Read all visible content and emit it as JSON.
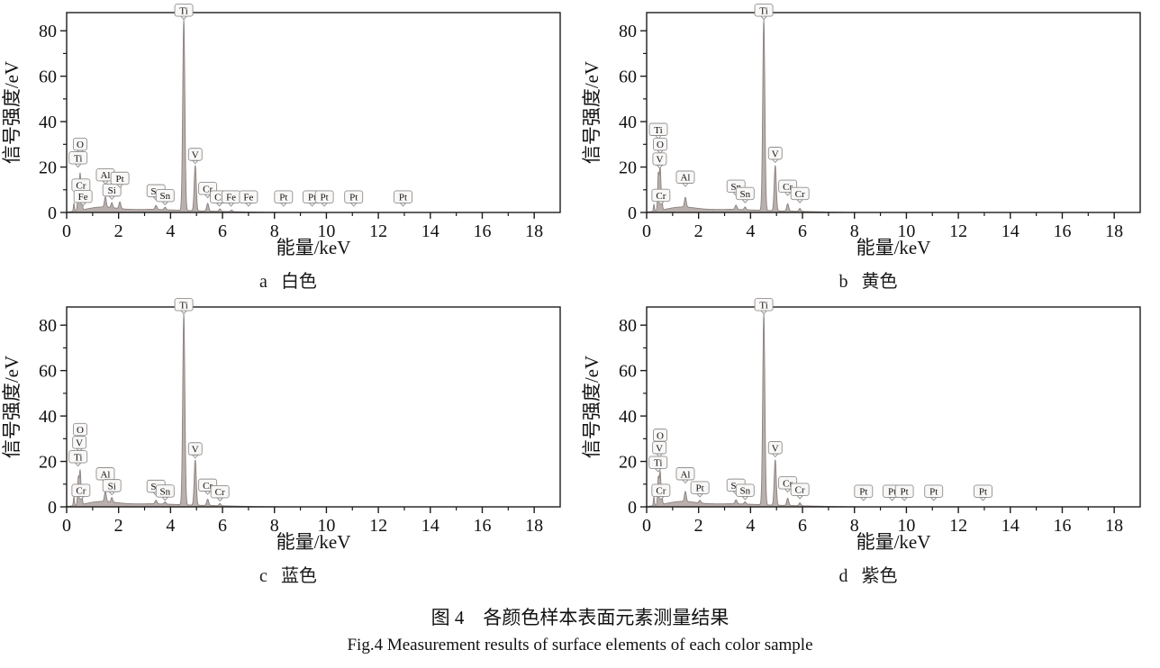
{
  "figure": {
    "caption_zh": "图 4　各颜色样本表面元素测量结果",
    "caption_en": "Fig.4 Measurement results of surface elements of each color sample"
  },
  "style": {
    "axis_color": "#1c1c1c",
    "spectrum_fill": "#b9b0ad",
    "spectrum_stroke": "#8a817e",
    "label_box_fill": "#faf8f7",
    "label_box_border": "#8f8f8f",
    "text_color": "#111111"
  },
  "chart_data": [
    {
      "type": "area",
      "panel_letter": "a",
      "panel_title": "白色",
      "xlabel": "能量/keV",
      "ylabel": "信号强度/eV",
      "xlim": [
        0,
        19
      ],
      "ylim": [
        0,
        88
      ],
      "xticks": [
        0,
        2,
        4,
        6,
        8,
        10,
        12,
        14,
        16,
        18
      ],
      "xticks_minor": [
        1,
        3,
        5,
        7,
        9,
        11,
        13,
        15,
        17
      ],
      "yticks": [
        0,
        20,
        40,
        60,
        80
      ],
      "yticks_minor": [
        10,
        30,
        50,
        70
      ],
      "peaks": [
        {
          "x": 0.28,
          "h": 3.5,
          "w": 0.028
        },
        {
          "x": 0.45,
          "h": 13,
          "w": 0.038
        },
        {
          "x": 0.52,
          "h": 16,
          "w": 0.04
        },
        {
          "x": 0.585,
          "h": 6,
          "w": 0.032
        },
        {
          "x": 1.49,
          "h": 4.5,
          "w": 0.05
        },
        {
          "x": 1.74,
          "h": 2.2,
          "w": 0.045
        },
        {
          "x": 2.05,
          "h": 3.0,
          "w": 0.05
        },
        {
          "x": 3.44,
          "h": 1.8,
          "w": 0.055
        },
        {
          "x": 3.79,
          "h": 1.1,
          "w": 0.05
        },
        {
          "x": 4.51,
          "h": 84,
          "w": 0.058
        },
        {
          "x": 4.95,
          "h": 20,
          "w": 0.055
        },
        {
          "x": 5.43,
          "h": 3.4,
          "w": 0.055
        },
        {
          "x": 5.9,
          "h": 1.1,
          "w": 0.05
        },
        {
          "x": 6.35,
          "h": 0.7,
          "w": 0.05
        },
        {
          "x": 1.3,
          "h": 2.1,
          "w": 0.85
        },
        {
          "x": 3.1,
          "h": 1.2,
          "w": 1.5
        },
        {
          "x": 5.3,
          "h": 0.5,
          "w": 1.8
        }
      ],
      "annotations": [
        {
          "label": "O",
          "x": 0.52,
          "y": 26
        },
        {
          "label": "Ti",
          "x": 0.44,
          "y": 20
        },
        {
          "label": "Cr",
          "x": 0.55,
          "y": 8
        },
        {
          "label": "Fe",
          "x": 0.63,
          "y": 3
        },
        {
          "label": "Al",
          "x": 1.49,
          "y": 12.5
        },
        {
          "label": "Si",
          "x": 1.74,
          "y": 5.8
        },
        {
          "label": "Pt",
          "x": 2.05,
          "y": 11
        },
        {
          "label": "Sn",
          "x": 3.44,
          "y": 5.5
        },
        {
          "label": "Sn",
          "x": 3.79,
          "y": 3.4
        },
        {
          "label": "Ti",
          "x": 4.51,
          "y": 85
        },
        {
          "label": "V",
          "x": 4.95,
          "y": 21.5
        },
        {
          "label": "Cr",
          "x": 5.43,
          "y": 6.5
        },
        {
          "label": "Cr",
          "x": 5.88,
          "y": 2.8
        },
        {
          "label": "Fe",
          "x": 6.33,
          "y": 2.8
        },
        {
          "label": "Fe",
          "x": 7.0,
          "y": 2.8
        },
        {
          "label": "Pt",
          "x": 8.35,
          "y": 2.8
        },
        {
          "label": "Pt",
          "x": 9.45,
          "y": 2.8
        },
        {
          "label": "Pt",
          "x": 9.92,
          "y": 2.8
        },
        {
          "label": "Pt",
          "x": 11.05,
          "y": 2.8
        },
        {
          "label": "Pt",
          "x": 12.95,
          "y": 2.8
        }
      ]
    },
    {
      "type": "area",
      "panel_letter": "b",
      "panel_title": "黄色",
      "xlabel": "能量/keV",
      "ylabel": "信号强度/eV",
      "xlim": [
        0,
        19
      ],
      "ylim": [
        0,
        88
      ],
      "xticks": [
        0,
        2,
        4,
        6,
        8,
        10,
        12,
        14,
        16,
        18
      ],
      "xticks_minor": [
        1,
        3,
        5,
        7,
        9,
        11,
        13,
        15,
        17
      ],
      "yticks": [
        0,
        20,
        40,
        60,
        80
      ],
      "yticks_minor": [
        10,
        30,
        50,
        70
      ],
      "peaks": [
        {
          "x": 0.28,
          "h": 3,
          "w": 0.028
        },
        {
          "x": 0.45,
          "h": 16,
          "w": 0.038
        },
        {
          "x": 0.52,
          "h": 19,
          "w": 0.04
        },
        {
          "x": 0.585,
          "h": 5,
          "w": 0.032
        },
        {
          "x": 1.49,
          "h": 4.3,
          "w": 0.05
        },
        {
          "x": 3.44,
          "h": 1.9,
          "w": 0.055
        },
        {
          "x": 3.79,
          "h": 1.2,
          "w": 0.05
        },
        {
          "x": 4.51,
          "h": 84,
          "w": 0.058
        },
        {
          "x": 4.95,
          "h": 20,
          "w": 0.055
        },
        {
          "x": 5.43,
          "h": 3.2,
          "w": 0.055
        },
        {
          "x": 5.9,
          "h": 1.3,
          "w": 0.05
        },
        {
          "x": 1.3,
          "h": 2.1,
          "w": 0.85
        },
        {
          "x": 3.1,
          "h": 1.2,
          "w": 1.5
        },
        {
          "x": 5.3,
          "h": 0.5,
          "w": 1.8
        }
      ],
      "annotations": [
        {
          "label": "Ti",
          "x": 0.45,
          "y": 32.5
        },
        {
          "label": "O",
          "x": 0.52,
          "y": 26
        },
        {
          "label": "V",
          "x": 0.5,
          "y": 19.5
        },
        {
          "label": "Cr",
          "x": 0.55,
          "y": 3.5
        },
        {
          "label": "Al",
          "x": 1.49,
          "y": 11.5
        },
        {
          "label": "Sn",
          "x": 3.44,
          "y": 7.5
        },
        {
          "label": "Sn",
          "x": 3.79,
          "y": 4.3
        },
        {
          "label": "Ti",
          "x": 4.51,
          "y": 85
        },
        {
          "label": "V",
          "x": 4.95,
          "y": 22
        },
        {
          "label": "Cr",
          "x": 5.43,
          "y": 7.5
        },
        {
          "label": "Cr",
          "x": 5.9,
          "y": 4.3
        }
      ]
    },
    {
      "type": "area",
      "panel_letter": "c",
      "panel_title": "蓝色",
      "xlabel": "能量/keV",
      "ylabel": "信号强度/eV",
      "xlim": [
        0,
        19
      ],
      "ylim": [
        0,
        88
      ],
      "xticks": [
        0,
        2,
        4,
        6,
        8,
        10,
        12,
        14,
        16,
        18
      ],
      "xticks_minor": [
        1,
        3,
        5,
        7,
        9,
        11,
        13,
        15,
        17
      ],
      "yticks": [
        0,
        20,
        40,
        60,
        80
      ],
      "yticks_minor": [
        10,
        30,
        50,
        70
      ],
      "peaks": [
        {
          "x": 0.28,
          "h": 4,
          "w": 0.028
        },
        {
          "x": 0.45,
          "h": 12,
          "w": 0.038
        },
        {
          "x": 0.52,
          "h": 15,
          "w": 0.04
        },
        {
          "x": 0.585,
          "h": 4,
          "w": 0.032
        },
        {
          "x": 1.49,
          "h": 4.4,
          "w": 0.05
        },
        {
          "x": 1.74,
          "h": 2.0,
          "w": 0.045
        },
        {
          "x": 3.44,
          "h": 1.6,
          "w": 0.055
        },
        {
          "x": 3.79,
          "h": 1.0,
          "w": 0.05
        },
        {
          "x": 4.51,
          "h": 84,
          "w": 0.058
        },
        {
          "x": 4.95,
          "h": 20,
          "w": 0.055
        },
        {
          "x": 5.43,
          "h": 2.8,
          "w": 0.055
        },
        {
          "x": 5.9,
          "h": 1.0,
          "w": 0.05
        },
        {
          "x": 1.3,
          "h": 2.1,
          "w": 0.85
        },
        {
          "x": 3.1,
          "h": 1.2,
          "w": 1.5
        },
        {
          "x": 5.3,
          "h": 0.5,
          "w": 1.8
        }
      ],
      "annotations": [
        {
          "label": "O",
          "x": 0.52,
          "y": 30
        },
        {
          "label": "V",
          "x": 0.49,
          "y": 24.3
        },
        {
          "label": "Ti",
          "x": 0.44,
          "y": 18
        },
        {
          "label": "Cr",
          "x": 0.55,
          "y": 3.2
        },
        {
          "label": "Al",
          "x": 1.49,
          "y": 10.5
        },
        {
          "label": "Si",
          "x": 1.74,
          "y": 5.3
        },
        {
          "label": "Sn",
          "x": 3.44,
          "y": 5
        },
        {
          "label": "Sn",
          "x": 3.79,
          "y": 2.9
        },
        {
          "label": "Ti",
          "x": 4.51,
          "y": 85
        },
        {
          "label": "V",
          "x": 4.95,
          "y": 21.5
        },
        {
          "label": "Cr",
          "x": 5.43,
          "y": 5.5
        },
        {
          "label": "Cr",
          "x": 5.9,
          "y": 2.6
        }
      ]
    },
    {
      "type": "area",
      "panel_letter": "d",
      "panel_title": "紫色",
      "xlabel": "能量/keV",
      "ylabel": "信号强度/eV",
      "xlim": [
        0,
        19
      ],
      "ylim": [
        0,
        88
      ],
      "xticks": [
        0,
        2,
        4,
        6,
        8,
        10,
        12,
        14,
        16,
        18
      ],
      "xticks_minor": [
        1,
        3,
        5,
        7,
        9,
        11,
        13,
        15,
        17
      ],
      "yticks": [
        0,
        20,
        40,
        60,
        80
      ],
      "yticks_minor": [
        10,
        30,
        50,
        70
      ],
      "peaks": [
        {
          "x": 0.28,
          "h": 4,
          "w": 0.028
        },
        {
          "x": 0.45,
          "h": 12,
          "w": 0.038
        },
        {
          "x": 0.52,
          "h": 14.5,
          "w": 0.04
        },
        {
          "x": 0.585,
          "h": 4,
          "w": 0.032
        },
        {
          "x": 1.49,
          "h": 4.4,
          "w": 0.05
        },
        {
          "x": 2.05,
          "h": 1.2,
          "w": 0.05
        },
        {
          "x": 3.44,
          "h": 1.8,
          "w": 0.055
        },
        {
          "x": 3.79,
          "h": 1.0,
          "w": 0.05
        },
        {
          "x": 4.51,
          "h": 84,
          "w": 0.058
        },
        {
          "x": 4.95,
          "h": 20,
          "w": 0.055
        },
        {
          "x": 5.43,
          "h": 3.2,
          "w": 0.055
        },
        {
          "x": 5.9,
          "h": 1.3,
          "w": 0.05
        },
        {
          "x": 1.3,
          "h": 2.1,
          "w": 0.85
        },
        {
          "x": 3.1,
          "h": 1.2,
          "w": 1.5
        },
        {
          "x": 5.3,
          "h": 0.5,
          "w": 1.8
        }
      ],
      "annotations": [
        {
          "label": "O",
          "x": 0.52,
          "y": 27.5
        },
        {
          "label": "V",
          "x": 0.49,
          "y": 22
        },
        {
          "label": "Ti",
          "x": 0.44,
          "y": 15.5
        },
        {
          "label": "Cr",
          "x": 0.55,
          "y": 3.2
        },
        {
          "label": "Al",
          "x": 1.49,
          "y": 10.5
        },
        {
          "label": "Pt",
          "x": 2.05,
          "y": 4.4
        },
        {
          "label": "Sn",
          "x": 3.44,
          "y": 5.5
        },
        {
          "label": "Sn",
          "x": 3.79,
          "y": 3.2
        },
        {
          "label": "Ti",
          "x": 4.51,
          "y": 85
        },
        {
          "label": "V",
          "x": 4.95,
          "y": 22
        },
        {
          "label": "Cr",
          "x": 5.43,
          "y": 6.5
        },
        {
          "label": "Cr",
          "x": 5.9,
          "y": 3.6
        },
        {
          "label": "Pt",
          "x": 8.35,
          "y": 2.8
        },
        {
          "label": "Pt",
          "x": 9.45,
          "y": 2.8
        },
        {
          "label": "Pt",
          "x": 9.92,
          "y": 2.8
        },
        {
          "label": "Pt",
          "x": 11.05,
          "y": 2.8
        },
        {
          "label": "Pt",
          "x": 12.95,
          "y": 2.8
        }
      ]
    }
  ]
}
